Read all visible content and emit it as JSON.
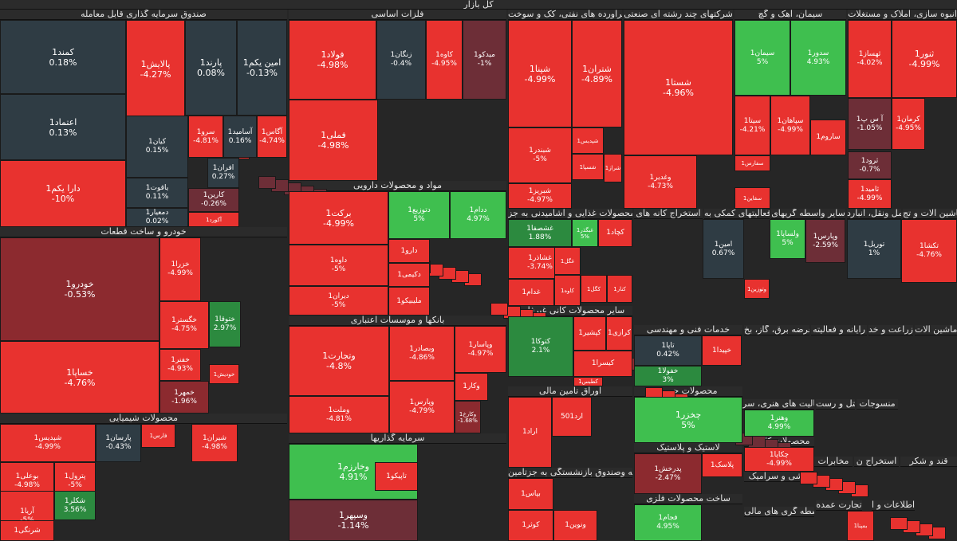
{
  "title": "کل بازار",
  "colors": {
    "red": "#e8322f",
    "dark": "#2f3c44",
    "darkred": "#8c2a2f",
    "green": "#3fbf4f",
    "dgreen": "#2c8a3f",
    "maroon": "#6d2e37"
  },
  "headers": [
    [
      "title",
      "sec-market"
    ],
    [
      "صندوق سرمایه گذاری قابل معامله",
      "sec-etf"
    ],
    [
      "فلزات اساسی",
      "sec-metals"
    ],
    [
      "فراورده های نفتی، کک و سوخت",
      "sec-oil"
    ],
    [
      "شرکتهای چند رشته ای صنعتی",
      "sec-multi"
    ],
    [
      "سیمان، آهک و گچ",
      "sec-cement"
    ],
    [
      "انبوه سازی، املاک و مستغلات",
      "sec-realestate"
    ],
    [
      "مواد و محصولات دارویی",
      "sec-pharma"
    ],
    [
      "محصولات غذایی و آشامیدنی به جز",
      "sec-food"
    ],
    [
      "استخراج کانه های",
      "sec-mining"
    ],
    [
      "فعالیتهای کمکی به",
      "sec-aux"
    ],
    [
      "سایر واسطه گریهای",
      "sec-otherfin"
    ],
    [
      "حمل ونقل، انبارد",
      "sec-transport"
    ],
    [
      "ماشین آلات و تج",
      "sec-machinery"
    ],
    [
      "خودرو و ساخت قطعات",
      "sec-auto"
    ],
    [
      "بانکها و موسسات اعتباری",
      "sec-banks"
    ],
    [
      "سایر محصولات کانی غیرفلزی",
      "sec-nonmetal"
    ],
    [
      "خدمات فنی و مهندسی",
      "sec-engineering"
    ],
    [
      "عرضه برق، گاز، بخ",
      "sec-utility"
    ],
    [
      "رایانه و فعالیته",
      "sec-computer"
    ],
    [
      "زراعت و خد",
      "sec-agri"
    ],
    [
      "ماشین آلات",
      "sec-elecmach"
    ],
    [
      "اوراق تامین مالی",
      "sec-bonds"
    ],
    [
      "محصولات چوبی",
      "sec-wood"
    ],
    [
      "فعالیت های هنری، سر",
      "sec-art"
    ],
    [
      "هتل و رست",
      "sec-hotel"
    ],
    [
      "منسوجات",
      "sec-textile"
    ],
    [
      "محصولات شیمیایی",
      "sec-chemical"
    ],
    [
      "سرمایه گذاریها",
      "sec-invest"
    ],
    [
      "محصولات کاغذی",
      "sec-paper"
    ],
    [
      "لاستیک و پلاستیک",
      "sec-rubber"
    ],
    [
      "مخابرات",
      "sec-telecom"
    ],
    [
      "استخراج ن",
      "sec-mining2"
    ],
    [
      "قند و شکر",
      "sec-sugar"
    ],
    [
      "بیمه وصندوق بازنشستگی به جزتامین",
      "sec-insurance"
    ],
    [
      "کاشی و سرامیک",
      "sec-tile"
    ],
    [
      "تجارت عمده",
      "sec-wholesale"
    ],
    [
      "اطلاعات و ا",
      "sec-info"
    ],
    [
      "ساخت محصولات فلزی",
      "sec-metalprod"
    ],
    [
      "واسطه گری های مالی",
      "sec-finint"
    ]
  ],
  "tiles": [
    [
      "کمند1",
      "0.18%",
      "dark"
    ],
    [
      "پالایش1",
      "-4.27%",
      "red"
    ],
    [
      "پارند1",
      "0.08%",
      "dark"
    ],
    [
      "امین یکم1",
      "-0.13%",
      "dark"
    ],
    [
      "اعتماد1",
      "0.13%",
      "dark"
    ],
    [
      "کیان1",
      "0.15%",
      "dark"
    ],
    [
      "سرو1",
      "-4.81%",
      "red"
    ],
    [
      "آسامید1",
      "0.16%",
      "dark"
    ],
    [
      "آگاس1",
      "-4.74%",
      "red"
    ],
    [
      "دارا یکم1",
      "-10%",
      "red"
    ],
    [
      "یاقوت1",
      "0.11%",
      "dark"
    ],
    [
      "افران1",
      "0.27%",
      "dark"
    ],
    [
      "کارین1",
      "-0.26%",
      "maroon"
    ],
    [
      "دمعیار1",
      "0.02%",
      "dark"
    ],
    [
      "آکورد1",
      "",
      ""
    ],
    [
      "فولاد1",
      "-4.98%",
      "red"
    ],
    [
      "زنگان1",
      "-0.4%",
      "dark"
    ],
    [
      "کاوه1",
      "-4.95%",
      "red"
    ],
    [
      "میدکو1",
      "-1%",
      "maroon"
    ],
    [
      "فملی1",
      "-4.98%",
      "red"
    ],
    [
      "شپنا1",
      "-4.99%",
      "red"
    ],
    [
      "شتران1",
      "-4.89%",
      "red"
    ],
    [
      "شبندر1",
      "-5%",
      "red"
    ],
    [
      "شپدیس1",
      "",
      ""
    ],
    [
      "شبریز1",
      "-4.97%",
      "red"
    ],
    [
      "شسپا1",
      "",
      ""
    ],
    [
      "شراز1",
      "",
      ""
    ],
    [
      "شستا1",
      "-4.96%",
      "red"
    ],
    [
      "وغدیر1",
      "-4.73%",
      "red"
    ],
    [
      "سیمان1",
      "5%",
      "green"
    ],
    [
      "سدور1",
      "4.93%",
      "green"
    ],
    [
      "سیتا1",
      "-4.21%",
      "red"
    ],
    [
      "سپاهان1",
      "-4.99%",
      "red"
    ],
    [
      "ساروم1",
      "",
      ""
    ],
    [
      "سفارس1",
      "",
      ""
    ],
    [
      "سقاین1",
      "",
      ""
    ],
    [
      "ثهساز1",
      "-4.02%",
      "red"
    ],
    [
      "ثنور1",
      "-4.99%",
      "red"
    ],
    [
      "آ س پ1",
      "-1.05%",
      "maroon"
    ],
    [
      "کرمان1",
      "-4.95%",
      "red"
    ],
    [
      "ثامید1",
      "-4.99%",
      "red"
    ],
    [
      "ثرود1",
      "-0.7%",
      "maroon"
    ],
    [
      "برکت1",
      "-4.99%",
      "red"
    ],
    [
      "دتوزیع1",
      "5%",
      "green"
    ],
    [
      "ددام1",
      "4.97%",
      "green"
    ],
    [
      "داوه1",
      "-5%",
      "red"
    ],
    [
      "دیران1",
      "-5%",
      "red"
    ],
    [
      "دارو1",
      "",
      ""
    ],
    [
      "دکیمی1",
      "",
      ""
    ],
    [
      "ملیبیکو1",
      "",
      ""
    ],
    [
      "غشصفا1",
      "1.88%",
      "dgreen"
    ],
    [
      "غبگذر1",
      "5%",
      "green"
    ],
    [
      "غشاذر1",
      "-3.74%",
      "red"
    ],
    [
      "غدام1",
      "",
      ""
    ],
    [
      "غگل1",
      "",
      ""
    ],
    [
      "کچاد1",
      "",
      ""
    ],
    [
      "کگل1",
      "",
      ""
    ],
    [
      "کنار1",
      "",
      ""
    ],
    [
      "کاوه1",
      "",
      ""
    ],
    [
      "امین1",
      "0.67%",
      "dark"
    ],
    [
      "ولساپا1",
      "5%",
      "green"
    ],
    [
      "وپارس1",
      "-2.59%",
      "maroon"
    ],
    [
      "وتوزین1",
      "",
      ""
    ],
    [
      "توریل1",
      "1%",
      "dark"
    ],
    [
      "تکشا1",
      "-4.76%",
      "red"
    ],
    [
      "وخارزم1",
      "4.91%",
      "green"
    ],
    [
      "خودرو1",
      "-0.53%",
      "darkred"
    ],
    [
      "خزرا1",
      "-4.99%",
      "red"
    ],
    [
      "خگستر1",
      "-4.75%",
      "red"
    ],
    [
      "ختوقا1",
      "2.97%",
      "dgreen"
    ],
    [
      "خفنر1",
      "-4.93%",
      "red"
    ],
    [
      "خمهر1",
      "-1.96%",
      "darkred"
    ],
    [
      "خساپا1",
      "-4.76%",
      "red"
    ],
    [
      "خودیش1",
      "",
      ""
    ],
    [
      "وتجارت1",
      "-4.8%",
      "red"
    ],
    [
      "وبصادر1",
      "-4.86%",
      "red"
    ],
    [
      "وملت1",
      "-4.81%",
      "red"
    ],
    [
      "وپارس1",
      "-4.79%",
      "red"
    ],
    [
      "وپاسار1",
      "-4.97%",
      "red"
    ],
    [
      "وکار1",
      "",
      ""
    ],
    [
      "وکارخ1",
      "-1.68%",
      "darkred"
    ],
    [
      "کتوکا1",
      "2.1%",
      "dgreen"
    ],
    [
      "کیسرا1",
      "",
      ""
    ],
    [
      "کرازی1",
      "",
      ""
    ],
    [
      "کپشیر1",
      "",
      ""
    ],
    [
      "کطبس1",
      "",
      ""
    ],
    [
      "تاپا1",
      "0.42%",
      "dark"
    ],
    [
      "خپیدا1",
      "",
      ""
    ],
    [
      "خفولا1",
      "3%",
      "dgreen"
    ],
    [
      "اراد1",
      "",
      ""
    ],
    [
      "ارد501",
      "",
      ""
    ],
    [
      "چخزر1",
      "5%",
      "green"
    ],
    [
      "وهنر1",
      "4.99%",
      "green"
    ],
    [
      "چکاپا1",
      "-4.99%",
      "red"
    ],
    [
      "پدرخش1",
      "-2.47%",
      "darkred"
    ],
    [
      "پلاسک1",
      "",
      ""
    ],
    [
      "شپدیس1",
      "-4.99%",
      "red"
    ],
    [
      "پارسان1",
      "-0.43%",
      "dark"
    ],
    [
      "فارس1",
      "",
      ""
    ],
    [
      "شیران1",
      "-4.98%",
      "red"
    ],
    [
      "بوعلی1",
      "-4.98%",
      "red"
    ],
    [
      "پترول1",
      "-5%",
      "red"
    ],
    [
      "شکلر1",
      "3.56%",
      "dgreen"
    ],
    [
      "آریا1",
      "-5%",
      "red"
    ],
    [
      "شرنگی1",
      "",
      ""
    ],
    [
      "وسپهر1",
      "-1.14%",
      "maroon"
    ],
    [
      "بپاس1",
      "",
      ""
    ],
    [
      "کوثر1",
      "",
      ""
    ],
    [
      "بمپنا1",
      "",
      ""
    ],
    [
      "فجام1",
      "4.95%",
      "green"
    ],
    [
      "ونوین1",
      "",
      ""
    ],
    [
      "تاپیکو1",
      "",
      ""
    ]
  ]
}
